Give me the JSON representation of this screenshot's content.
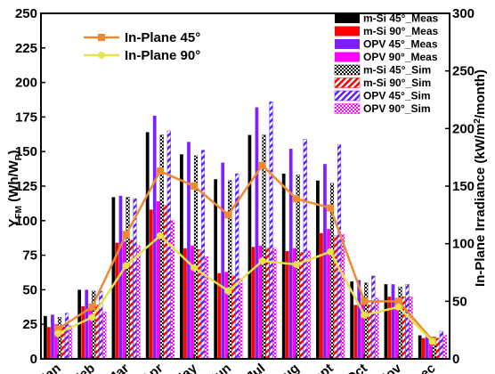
{
  "chart_data": {
    "type": "bar",
    "categories": [
      "Jan",
      "Feb",
      "Mar",
      "Apr",
      "May",
      "Jun",
      "Jul",
      "Aug",
      "Sept",
      "Oct",
      "Nov",
      "Dec"
    ],
    "ylabel_main": "Y",
    "ylabel_sub": "FM",
    "ylabel_rest": " (Wh/W",
    "ylabel_sub2": "P",
    "ylabel_end": ")",
    "ylim": [
      0,
      250
    ],
    "yticks": [
      0,
      25,
      50,
      75,
      100,
      125,
      150,
      175,
      200,
      225,
      250
    ],
    "y2label_main": "In-Plane Irradiance (kW/m",
    "y2label_sup": "2",
    "y2label_end": "/month)",
    "y2lim": [
      0,
      300
    ],
    "y2ticks": [
      0,
      50,
      100,
      150,
      200,
      250,
      300
    ],
    "bar_series": [
      {
        "name": "m-Si 45°_Meas",
        "color": "#000000",
        "pattern": "solid",
        "values": [
          31,
          50,
          117,
          164,
          148,
          130,
          162,
          134,
          129,
          56,
          54,
          17
        ]
      },
      {
        "name": "m-Si 90°_Meas",
        "color": "#ff0000",
        "pattern": "solid",
        "values": [
          23,
          38,
          84,
          108,
          80,
          62,
          81,
          78,
          91,
          39,
          45,
          15
        ]
      },
      {
        "name": "OPV 45°_Meas",
        "color": "#7f1fff",
        "pattern": "solid",
        "values": [
          32,
          50,
          118,
          176,
          157,
          142,
          182,
          152,
          141,
          57,
          54,
          16
        ]
      },
      {
        "name": "OPV 90°_Meas",
        "color": "#ff00ff",
        "pattern": "solid",
        "values": [
          25,
          38,
          85,
          114,
          82,
          63,
          82,
          80,
          94,
          40,
          44,
          14
        ]
      },
      {
        "name": "m-Si 45°_Sim",
        "color": "#000000",
        "pattern": "dots",
        "values": [
          30,
          49,
          117,
          162,
          147,
          129,
          162,
          133,
          127,
          55,
          52,
          16
        ]
      },
      {
        "name": "m-Si 90°_Sim",
        "color": "#ff0000",
        "pattern": "hatch",
        "values": [
          23,
          39,
          86,
          111,
          79,
          60,
          80,
          77,
          89,
          39,
          45,
          15
        ]
      },
      {
        "name": "OPV 45°_Sim",
        "color": "#5a1fff",
        "pattern": "hatch",
        "values": [
          33,
          49,
          116,
          165,
          151,
          134,
          186,
          159,
          155,
          60,
          54,
          20
        ]
      },
      {
        "name": "OPV 90°_Sim",
        "color": "#ff00ff",
        "pattern": "dots",
        "values": [
          24,
          34,
          82,
          100,
          74,
          58,
          80,
          78,
          90,
          44,
          45,
          17
        ]
      }
    ],
    "line_series": [
      {
        "name": "In-Plane 45°",
        "color": "#f08a2e",
        "marker": "square",
        "axis": "right",
        "values": [
          26,
          45,
          108,
          163,
          150,
          125,
          168,
          139,
          131,
          50,
          50,
          16
        ]
      },
      {
        "name": "In-Plane 90°",
        "color": "#e8e34a",
        "marker": "circle",
        "axis": "right",
        "values": [
          22,
          36,
          81,
          107,
          79,
          59,
          85,
          82,
          93,
          38,
          45,
          15
        ]
      }
    ],
    "legend_position": "top"
  }
}
